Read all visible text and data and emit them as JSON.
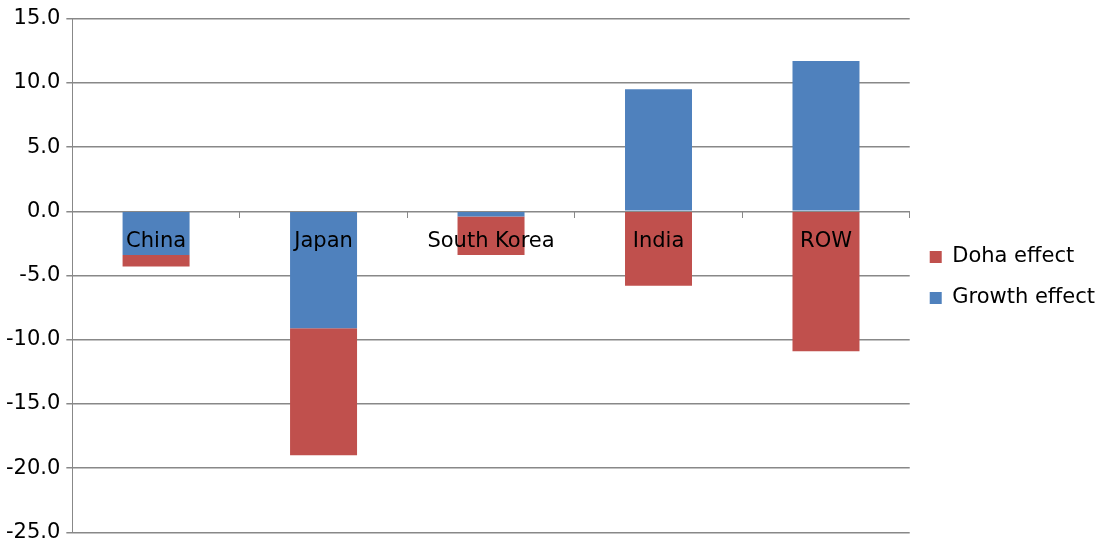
{
  "chart_data": {
    "type": "bar",
    "stacked": true,
    "categories": [
      "China",
      "Japan",
      "South Korea",
      "India",
      "ROW"
    ],
    "series": [
      {
        "name": "Growth effect",
        "color": "#4f81bd",
        "values": [
          -3.4,
          -9.1,
          -0.4,
          9.5,
          11.7
        ]
      },
      {
        "name": "Doha effect",
        "color": "#c0504d",
        "values": [
          -0.9,
          -9.9,
          -3.0,
          -5.8,
          -10.9
        ]
      }
    ],
    "ylim": [
      -25,
      15
    ],
    "yticks": [
      {
        "value": -25,
        "label": "-25.0"
      },
      {
        "value": -20,
        "label": "-20.0"
      },
      {
        "value": -15,
        "label": "-15.0"
      },
      {
        "value": -10,
        "label": "-10.0"
      },
      {
        "value": -5,
        "label": "-5.0"
      },
      {
        "value": 0,
        "label": "0.0"
      },
      {
        "value": 5,
        "label": "5.0"
      },
      {
        "value": 10,
        "label": "10.0"
      },
      {
        "value": 15,
        "label": "15.0"
      }
    ],
    "grid": "y",
    "legend": "right"
  }
}
